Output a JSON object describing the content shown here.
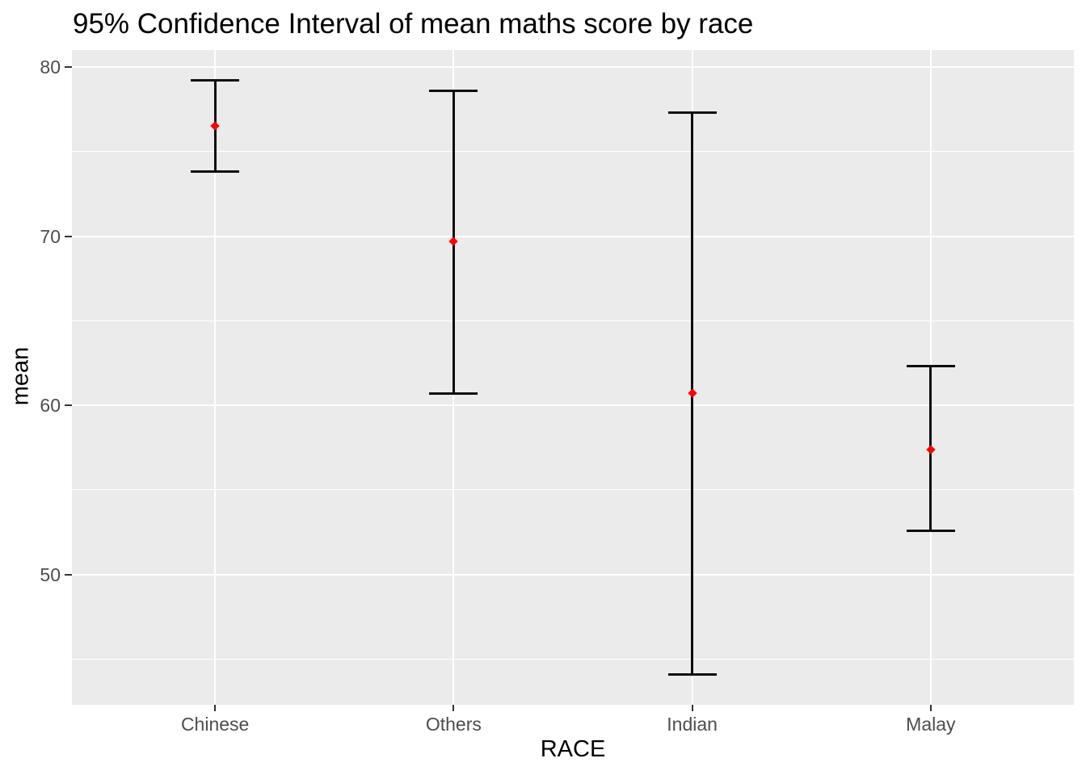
{
  "title": "95% Confidence Interval of mean maths score by race",
  "colors": {
    "panel_bg": "#EBEBEB",
    "gridline": "#FFFFFF",
    "errorbar": "#0D0D0D",
    "point": "#FF0000",
    "tick_label": "#4D4D4D",
    "tick_mark": "#333333",
    "text": "#000000"
  },
  "chart_data": {
    "type": "errorbar",
    "title": "95% Confidence Interval of mean maths score by race",
    "xlabel": "RACE",
    "ylabel": "mean",
    "categories": [
      "Chinese",
      "Others",
      "Indian",
      "Malay"
    ],
    "series": [
      {
        "name": "mean",
        "values": [
          76.5,
          69.7,
          60.7,
          57.4
        ]
      },
      {
        "name": "ci_lower",
        "values": [
          73.8,
          60.7,
          44.1,
          52.6
        ]
      },
      {
        "name": "ci_upper",
        "values": [
          79.2,
          78.6,
          77.3,
          62.3
        ]
      }
    ],
    "y_major_ticks": [
      80,
      70,
      60,
      50
    ],
    "y_minor_ticks": [
      75,
      65,
      55,
      45
    ],
    "ylim": [
      42.3,
      81.0
    ],
    "grid": "on",
    "legend": "none",
    "panel_theme": "ggplot2-grey"
  }
}
